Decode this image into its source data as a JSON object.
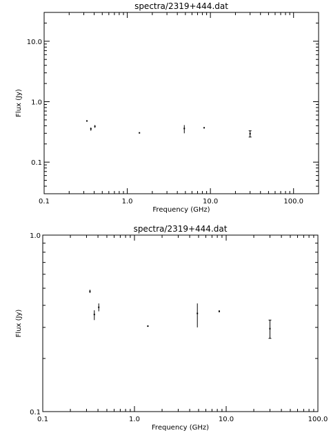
{
  "chart_data": [
    {
      "type": "scatter",
      "title": "spectra/2319+444.dat",
      "xlabel": "Frequency (GHz)",
      "ylabel": "Flux (Jy)",
      "xscale": "log",
      "yscale": "log",
      "xlim": [
        0.1,
        200
      ],
      "ylim": [
        0.03,
        30
      ],
      "xticks": [
        {
          "value": 0.1,
          "label": "0.1"
        },
        {
          "value": 1,
          "label": "1.0"
        },
        {
          "value": 10,
          "label": "10.0"
        },
        {
          "value": 100,
          "label": "100.0"
        }
      ],
      "yticks": [
        {
          "value": 0.1,
          "label": "0.1"
        },
        {
          "value": 1,
          "label": "1.0"
        },
        {
          "value": 10,
          "label": "10.0"
        }
      ],
      "grid": false,
      "points": [
        {
          "x": 0.327,
          "y": 0.48,
          "lo": 0.47,
          "hi": 0.49
        },
        {
          "x": 0.365,
          "y": 0.355,
          "lo": 0.33,
          "hi": 0.375
        },
        {
          "x": 0.408,
          "y": 0.39,
          "lo": 0.37,
          "hi": 0.41
        },
        {
          "x": 1.4,
          "y": 0.305,
          "lo": 0.302,
          "hi": 0.308
        },
        {
          "x": 4.85,
          "y": 0.36,
          "lo": 0.3,
          "hi": 0.41
        },
        {
          "x": 8.4,
          "y": 0.37,
          "lo": 0.365,
          "hi": 0.375
        },
        {
          "x": 30,
          "y": 0.295,
          "lo": 0.26,
          "hi": 0.33
        }
      ]
    },
    {
      "type": "scatter",
      "title": "spectra/2319+444.dat",
      "xlabel": "Frequency (GHz)",
      "ylabel": "Flux (Jy)",
      "xscale": "log",
      "yscale": "log",
      "xlim": [
        0.1,
        100
      ],
      "ylim": [
        0.1,
        1
      ],
      "xticks": [
        {
          "value": 0.1,
          "label": "0.1"
        },
        {
          "value": 1,
          "label": "1.0"
        },
        {
          "value": 10,
          "label": "10.0"
        },
        {
          "value": 100,
          "label": "100.0"
        }
      ],
      "yticks": [
        {
          "value": 0.1,
          "label": "0.1"
        },
        {
          "value": 1,
          "label": "1.0"
        }
      ],
      "grid": false,
      "points": [
        {
          "x": 0.327,
          "y": 0.48,
          "lo": 0.47,
          "hi": 0.49
        },
        {
          "x": 0.365,
          "y": 0.355,
          "lo": 0.33,
          "hi": 0.375
        },
        {
          "x": 0.408,
          "y": 0.39,
          "lo": 0.37,
          "hi": 0.41
        },
        {
          "x": 1.4,
          "y": 0.305,
          "lo": 0.302,
          "hi": 0.308
        },
        {
          "x": 4.85,
          "y": 0.36,
          "lo": 0.3,
          "hi": 0.41
        },
        {
          "x": 8.4,
          "y": 0.37,
          "lo": 0.365,
          "hi": 0.375
        },
        {
          "x": 30,
          "y": 0.295,
          "lo": 0.26,
          "hi": 0.33
        }
      ]
    }
  ]
}
